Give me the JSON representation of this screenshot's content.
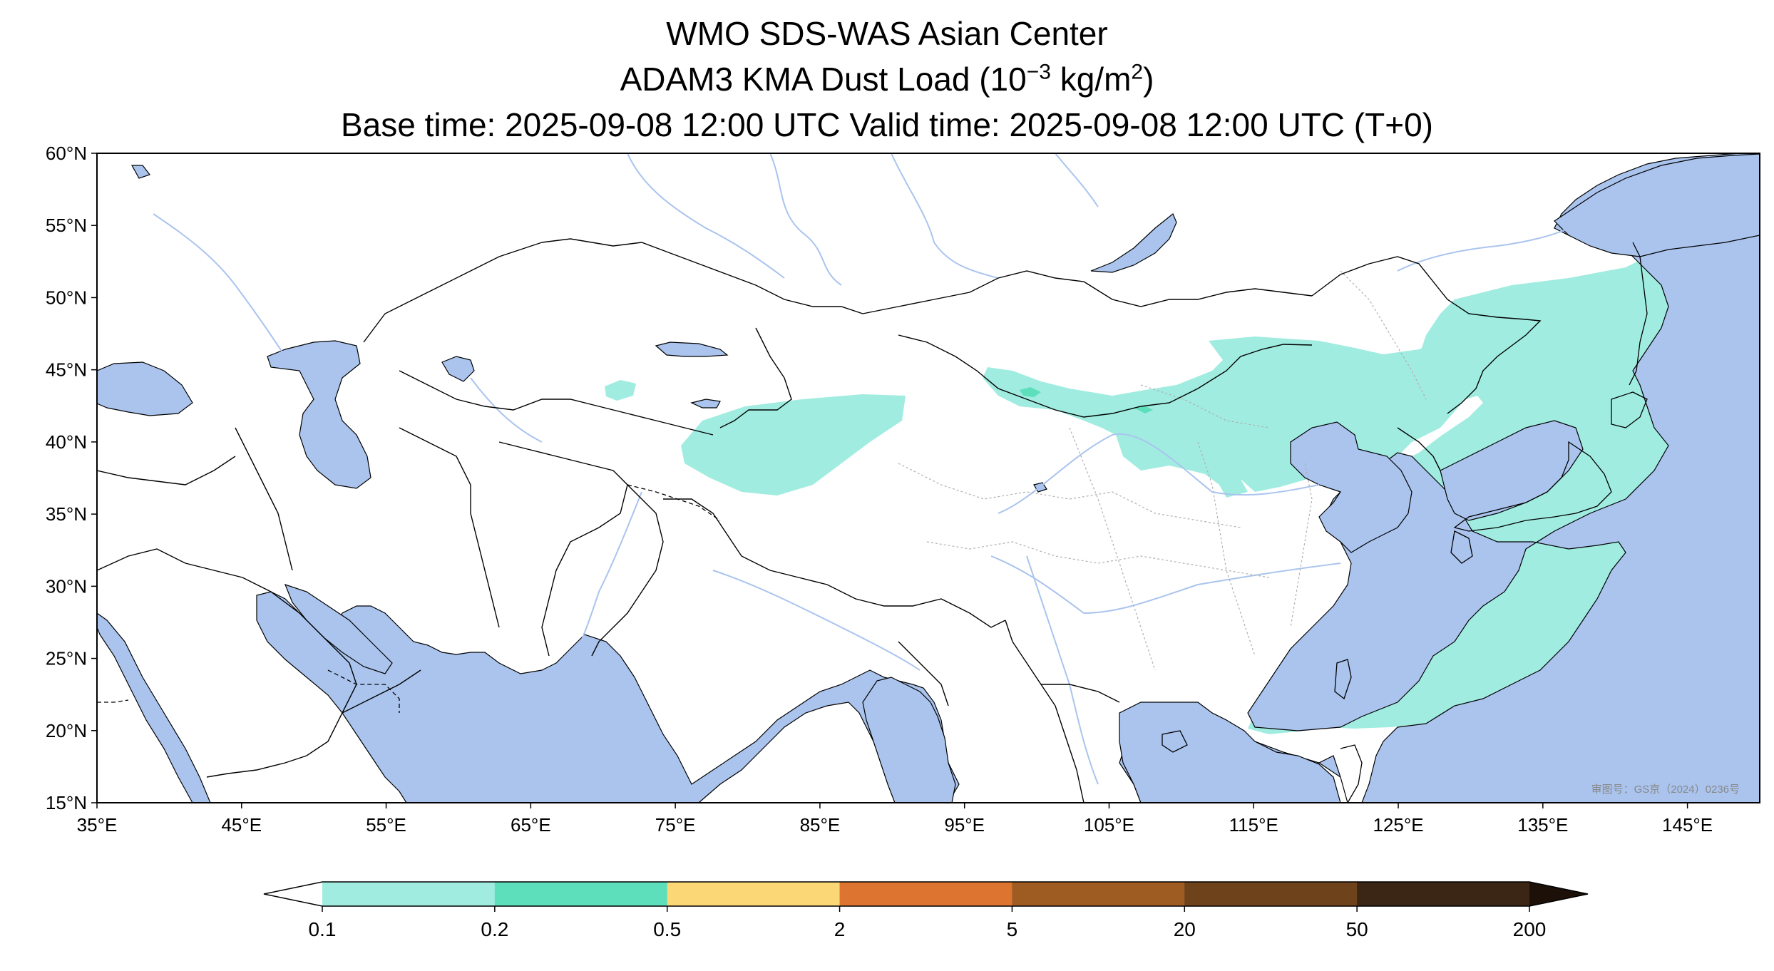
{
  "title": {
    "line1": "WMO SDS-WAS Asian Center",
    "line2_prefix": "ADAM3 KMA Dust Load (10",
    "line2_exp": "−3",
    "line2_mid": " kg/m",
    "line2_exp2": "2",
    "line2_suffix": ")",
    "line3": "Base time: 2025-09-08 12:00 UTC Valid time: 2025-09-08 12:00 UTC (T+0)"
  },
  "map": {
    "lon_range": [
      35,
      150
    ],
    "lat_range": [
      15,
      60
    ],
    "lon_ticks": [
      35,
      45,
      55,
      65,
      75,
      85,
      95,
      105,
      115,
      125,
      135,
      145
    ],
    "lon_tick_labels": [
      "35°E",
      "45°E",
      "55°E",
      "65°E",
      "75°E",
      "85°E",
      "95°E",
      "105°E",
      "115°E",
      "125°E",
      "135°E",
      "145°E"
    ],
    "lat_ticks": [
      60,
      55,
      50,
      45,
      40,
      35,
      30,
      25,
      20,
      15
    ],
    "lat_tick_labels": [
      "60°N",
      "55°N",
      "50°N",
      "45°N",
      "40°N",
      "35°N",
      "30°N",
      "25°N",
      "20°N",
      "15°N"
    ],
    "approval_note": "审图号：GS京（2024）0236号",
    "colors": {
      "ocean": "#aac4ee",
      "land": "#ffffff",
      "border": "#000000",
      "river": "#aac4ee",
      "province": "#b0b0b0"
    }
  },
  "dust_regions": [
    {
      "name": "taklamakan",
      "level": "0.1-0.2",
      "color": "#a0ece0"
    },
    {
      "name": "mongolia-north-china",
      "level": "0.1-0.2",
      "color": "#a0ece0"
    },
    {
      "name": "east-china-sea-pacific",
      "level": "0.1-0.2",
      "color": "#a0ece0"
    },
    {
      "name": "mongolia-patches",
      "level": "0.2-0.5",
      "color": "#5ddfbb"
    }
  ],
  "colorbar": {
    "ticks": [
      "0.1",
      "0.2",
      "0.5",
      "2",
      "5",
      "20",
      "50",
      "200"
    ],
    "under_color": "#ffffff",
    "colors": [
      "#a0ece0",
      "#5ddfbb",
      "#fbd776",
      "#dd7430",
      "#9e5c22",
      "#6e421b",
      "#3b2615"
    ],
    "over_color": "#1c1008"
  }
}
